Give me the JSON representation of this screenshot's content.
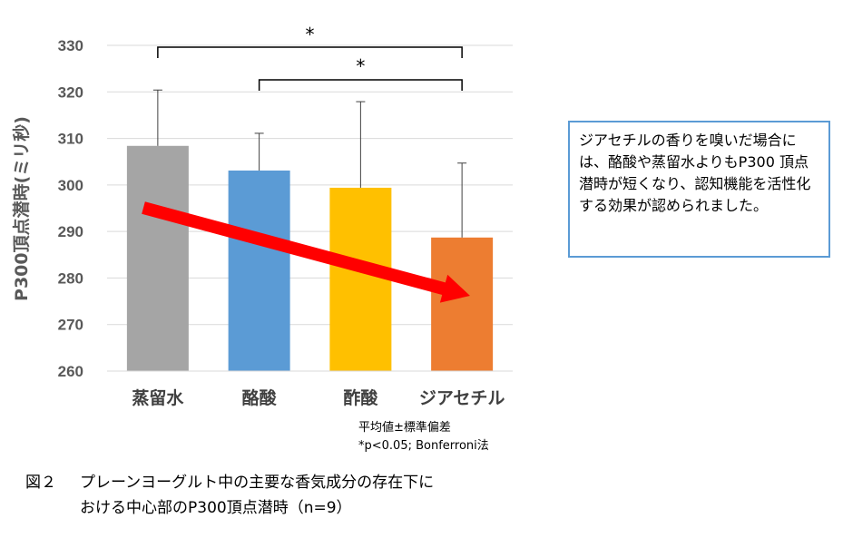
{
  "chart_data": {
    "type": "bar",
    "ylabel": "P300頂点潜時(ミリ秒)",
    "ylim": [
      260,
      330
    ],
    "yticks": [
      260,
      270,
      280,
      290,
      300,
      310,
      320,
      330
    ],
    "grid": true,
    "categories": [
      "蒸留水",
      "酪酸",
      "酢酸",
      "ジアセチル"
    ],
    "values": [
      308.4,
      303.1,
      299.4,
      288.7
    ],
    "error_upper": [
      320.4,
      311.1,
      317.9,
      304.7
    ],
    "colors": [
      "#a5a5a5",
      "#5b9bd5",
      "#ffc000",
      "#ed7d31"
    ],
    "significance": [
      {
        "from": "蒸留水",
        "to": "ジアセチル",
        "label": "*"
      },
      {
        "from": "酪酸",
        "to": "ジアセチル",
        "label": "*"
      }
    ],
    "trend_arrow_color": "#ff0000"
  },
  "note": {
    "line1": "平均値±標準偏差",
    "line2": "*p<0.05; Bonferroni法"
  },
  "callout": {
    "text": "ジアセチルの香りを嗅いだ場合には、酪酸や蒸留水よりもP300 頂点潜時が短くなり、認知機能を活性化する効果が認められました。",
    "border_color": "#5b9bd5"
  },
  "caption": {
    "number": "図２",
    "line1": "プレーンヨーグルト中の主要な香気成分の存在下に",
    "line2": "おける中心部のP300頂点潜時（n=9）"
  }
}
